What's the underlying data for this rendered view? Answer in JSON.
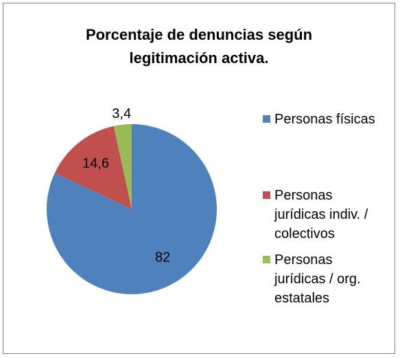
{
  "chart_data": {
    "type": "pie",
    "title": "Porcentaje de denuncias según legitimación activa.",
    "categories": [
      "Personas físicas",
      "Personas jurídicas indiv. / colectivos",
      "Personas jurídicas / org. estatales"
    ],
    "values": [
      82,
      14.6,
      3.4
    ],
    "value_labels": [
      "82",
      "14,6",
      "3,4"
    ],
    "colors": [
      "#4f81bd",
      "#c0504d",
      "#9bbb59"
    ],
    "legend": "right"
  }
}
